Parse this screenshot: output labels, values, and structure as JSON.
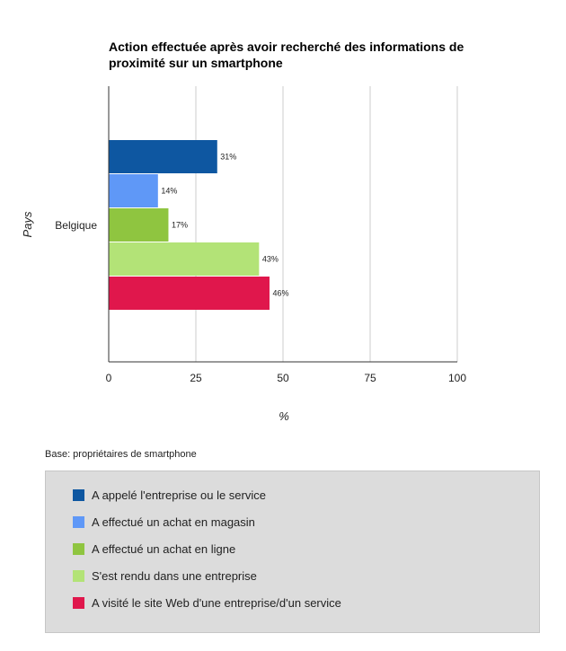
{
  "chart_data": {
    "type": "bar",
    "orientation": "horizontal",
    "title": "Action effectuée après avoir recherché des informations de proximité sur un smartphone",
    "xlabel": "%",
    "ylabel": "Pays",
    "categories": [
      "Belgique"
    ],
    "xlim": [
      0,
      100
    ],
    "xticks": [
      "0",
      "25",
      "50",
      "75",
      "100"
    ],
    "series": [
      {
        "name": "A appelé l'entreprise ou le service",
        "values": [
          31
        ],
        "label": "31%",
        "color": "#0e57a1"
      },
      {
        "name": "A effectué un achat en magasin",
        "values": [
          14
        ],
        "label": "14%",
        "color": "#5f98f7"
      },
      {
        "name": "A effectué un achat en ligne",
        "values": [
          17
        ],
        "label": "17%",
        "color": "#8fc540"
      },
      {
        "name": "S'est rendu dans une entreprise",
        "values": [
          43
        ],
        "label": "43%",
        "color": "#b3e377"
      },
      {
        "name": "A visité le site Web d'une entreprise/d'un service",
        "values": [
          46
        ],
        "label": "46%",
        "color": "#e0174c"
      }
    ],
    "grid": true,
    "legend_position": "bottom"
  },
  "note": "Base: propriétaires de smartphone"
}
